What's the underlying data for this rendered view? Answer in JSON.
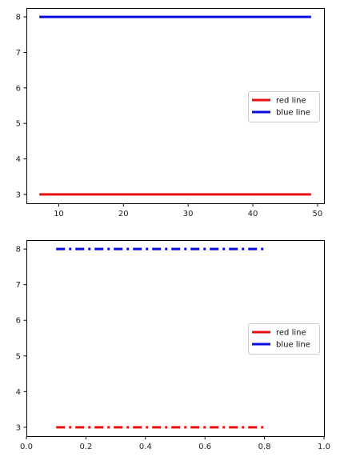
{
  "chart_data": [
    {
      "type": "line",
      "title": "",
      "xlabel": "",
      "ylabel": "",
      "xlim": [
        5,
        51
      ],
      "ylim": [
        2.75,
        8.25
      ],
      "xticks": [
        10,
        20,
        30,
        40,
        50
      ],
      "yticks": [
        3,
        4,
        5,
        6,
        7,
        8
      ],
      "grid": false,
      "legend": "center-right",
      "series": [
        {
          "name": "red line",
          "color": "#e81010",
          "style": "solid",
          "x": [
            7,
            49
          ],
          "y": [
            3,
            3
          ]
        },
        {
          "name": "blue line",
          "color": "#0a0ae6",
          "style": "solid",
          "x": [
            7,
            49
          ],
          "y": [
            8,
            8
          ]
        }
      ]
    },
    {
      "type": "line",
      "title": "",
      "xlabel": "",
      "ylabel": "",
      "xlim": [
        0.0,
        1.0
      ],
      "ylim": [
        2.75,
        8.25
      ],
      "xticks": [
        0.0,
        0.2,
        0.4,
        0.6,
        0.8,
        1.0
      ],
      "yticks": [
        3,
        4,
        5,
        6,
        7,
        8
      ],
      "grid": false,
      "legend": "center-right",
      "series": [
        {
          "name": "red line",
          "color": "#e81010",
          "style": "dashdot",
          "x": [
            0.1,
            0.8
          ],
          "y": [
            3,
            3
          ]
        },
        {
          "name": "blue line",
          "color": "#0a0ae6",
          "style": "dashdot",
          "x": [
            0.1,
            0.8
          ],
          "y": [
            8,
            8
          ]
        }
      ]
    }
  ]
}
